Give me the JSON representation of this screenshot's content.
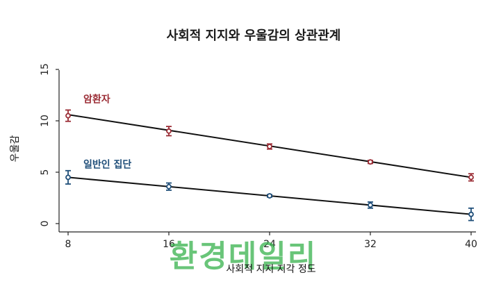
{
  "chart_data": {
    "type": "line",
    "title": "사회적 지지와 우울감의 상관관계",
    "xlabel": "사회적 지지 지각 정도",
    "ylabel": "우울감",
    "x": [
      8,
      16,
      24,
      32,
      40
    ],
    "xlim": [
      8,
      40
    ],
    "ylim": [
      0,
      15
    ],
    "x_ticks": [
      "8",
      "16",
      "24",
      "32",
      "40"
    ],
    "y_ticks": [
      "0",
      "5",
      "10",
      "15"
    ],
    "series": [
      {
        "name": "암환자",
        "color": "#9b2c35",
        "values": [
          10.5,
          9.0,
          7.5,
          6.0,
          4.5
        ],
        "err": [
          0.55,
          0.45,
          0.25,
          0.15,
          0.35
        ],
        "fit": [
          10.6,
          4.5
        ]
      },
      {
        "name": "일반인 집단",
        "color": "#1f4e79",
        "values": [
          4.5,
          3.6,
          2.7,
          1.8,
          0.9
        ],
        "err": [
          0.65,
          0.35,
          0.12,
          0.3,
          0.6
        ],
        "fit": [
          4.5,
          0.9
        ]
      }
    ],
    "grid": false,
    "legend": "inline labels"
  },
  "watermark": "환경데일리"
}
